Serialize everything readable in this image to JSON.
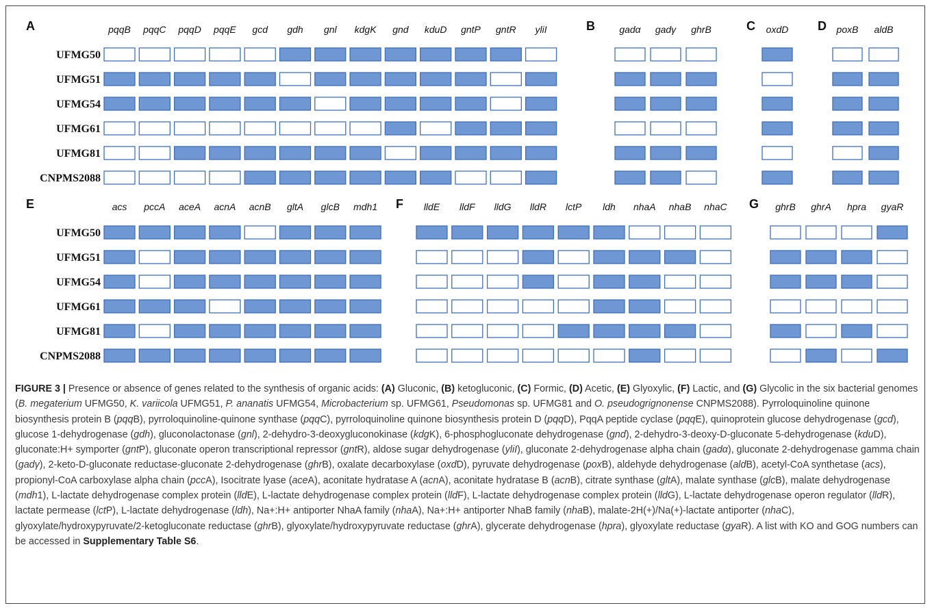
{
  "colors": {
    "filled": "#6f97d3",
    "filled_border": "#3f6fb8",
    "empty_border": "#3f6fb8",
    "empty": "#ffffff"
  },
  "strains": [
    "UFMG50",
    "UFMG51",
    "UFMG54",
    "UFMG61",
    "UFMG81",
    "CNPMS2088"
  ],
  "panels": [
    {
      "letter": "A",
      "genes": [
        "pqqB",
        "pqqC",
        "pqqD",
        "pqqE",
        "gcd",
        "gdh",
        "gnl",
        "kdgK",
        "gnd",
        "kduD",
        "gntP",
        "gntR",
        "yliI"
      ],
      "matrix": [
        [
          0,
          0,
          0,
          0,
          0,
          1,
          1,
          1,
          1,
          1,
          1,
          1,
          0
        ],
        [
          1,
          1,
          1,
          1,
          1,
          0,
          1,
          1,
          1,
          1,
          1,
          0,
          1
        ],
        [
          1,
          1,
          1,
          1,
          1,
          1,
          0,
          1,
          1,
          1,
          1,
          0,
          1
        ],
        [
          0,
          0,
          0,
          0,
          0,
          0,
          0,
          0,
          1,
          0,
          1,
          1,
          1
        ],
        [
          0,
          0,
          1,
          1,
          1,
          1,
          1,
          1,
          0,
          1,
          1,
          1,
          1
        ],
        [
          0,
          0,
          0,
          0,
          1,
          1,
          1,
          1,
          1,
          1,
          0,
          0,
          1
        ]
      ]
    },
    {
      "letter": "B",
      "genes": [
        "gadα",
        "gadγ",
        "ghrB"
      ],
      "matrix": [
        [
          0,
          0,
          0
        ],
        [
          1,
          1,
          1
        ],
        [
          1,
          1,
          1
        ],
        [
          0,
          0,
          0
        ],
        [
          1,
          1,
          1
        ],
        [
          1,
          1,
          0
        ]
      ]
    },
    {
      "letter": "C",
      "genes": [
        "oxdD"
      ],
      "matrix": [
        [
          1
        ],
        [
          0
        ],
        [
          1
        ],
        [
          1
        ],
        [
          0
        ],
        [
          1
        ]
      ]
    },
    {
      "letter": "D",
      "genes": [
        "poxB",
        "aldB"
      ],
      "matrix": [
        [
          0,
          0
        ],
        [
          1,
          1
        ],
        [
          1,
          1
        ],
        [
          1,
          1
        ],
        [
          0,
          1
        ],
        [
          1,
          1
        ]
      ]
    },
    {
      "letter": "E",
      "genes": [
        "acs",
        "pccA",
        "aceA",
        "acnA",
        "acnB",
        "gltA",
        "glcB",
        "mdh1"
      ],
      "matrix": [
        [
          1,
          1,
          1,
          1,
          0,
          1,
          1,
          1
        ],
        [
          1,
          0,
          1,
          1,
          1,
          1,
          1,
          1
        ],
        [
          1,
          0,
          1,
          1,
          1,
          1,
          1,
          1
        ],
        [
          1,
          1,
          1,
          0,
          1,
          1,
          1,
          1
        ],
        [
          1,
          0,
          1,
          1,
          1,
          1,
          1,
          1
        ],
        [
          1,
          1,
          1,
          1,
          1,
          1,
          1,
          1
        ]
      ]
    },
    {
      "letter": "F",
      "genes": [
        "lldE",
        "lldF",
        "lldG",
        "lldR",
        "lctP",
        "ldh",
        "nhaA",
        "nhaB",
        "nhaC"
      ],
      "matrix": [
        [
          1,
          1,
          1,
          1,
          1,
          1,
          0,
          0,
          0
        ],
        [
          0,
          0,
          0,
          1,
          0,
          1,
          1,
          1,
          0
        ],
        [
          0,
          0,
          0,
          1,
          0,
          1,
          1,
          0,
          0
        ],
        [
          0,
          0,
          0,
          0,
          0,
          1,
          1,
          0,
          0
        ],
        [
          0,
          0,
          0,
          0,
          1,
          1,
          1,
          1,
          0
        ],
        [
          0,
          0,
          0,
          0,
          0,
          0,
          1,
          0,
          0
        ]
      ]
    },
    {
      "letter": "G",
      "genes": [
        "ghrB",
        "ghrA",
        "hpra",
        "gyaR"
      ],
      "matrix": [
        [
          0,
          0,
          0,
          1
        ],
        [
          1,
          1,
          1,
          0
        ],
        [
          1,
          1,
          1,
          0
        ],
        [
          0,
          0,
          0,
          0
        ],
        [
          1,
          0,
          1,
          0
        ],
        [
          0,
          1,
          0,
          1
        ]
      ]
    }
  ],
  "caption": {
    "label": "FIGURE 3 |",
    "p1": " Presence or absence of genes related to the synthesis of organic acids: ",
    "lA": "(A)",
    "tA": " Gluconic, ",
    "lB": "(B)",
    "tB": " ketogluconic, ",
    "lC": "(C)",
    "tC": " Formic, ",
    "lD": "(D)",
    "tD": " Acetic, ",
    "lE": "(E)",
    "tE": " Glyoxylic, ",
    "lF": "(F)",
    "tF": " Lactic, and ",
    "lG": "(G)",
    "tG": " Glycolic in the six bacterial genomes (",
    "s1": "B. megaterium",
    "s1b": " UFMG50, ",
    "s2": "K. variicola",
    "s2b": " UFMG51, ",
    "s3": "P. ananatis",
    "s3b": " UFMG54, ",
    "s4": "Microbacterium",
    "s4b": " sp. UFMG61, ",
    "s5": "Pseudomonas",
    "s5b": " sp. UFMG81 and ",
    "s6": "O. pseudogrignonense",
    "s6b": " CNPMS2088). Pyrroloquinoline quinone biosynthesis protein B (",
    "g1": "pqq",
    "g1b": "B), pyrroloquinoline-quinone synthase (",
    "g2": "pqq",
    "g2b": "C), pyrroloquinoline quinone biosynthesis protein D (",
    "g3": "pqq",
    "g3b": "D), PqqA peptide cyclase (",
    "g4": "pqq",
    "g4b": "E), quinoprotein glucose dehydrogenase (",
    "g5": "gcd",
    "g5b": "), glucose 1-dehydrogenase (",
    "g6": "gdh",
    "g6b": "), gluconolactonase (",
    "g7": "gnl",
    "g7b": "), 2-dehydro-3-deoxygluconokinase (",
    "g8": "kdg",
    "g8b": "K), 6-phosphogluconate dehydrogenase (",
    "g9": "gnd",
    "g9b": "), 2-dehydro-3-deoxy-D-gluconate 5-dehydrogenase (",
    "g10": "kdu",
    "g10b": "D), gluconate:H+ symporter (",
    "g11": "gnt",
    "g11b": "P), gluconate operon transcriptional repressor (",
    "g12": "gnt",
    "g12b": "R), aldose sugar dehydrogenase (",
    "g13": "yliI",
    "g13b": "), gluconate 2-dehydrogenase alpha chain (",
    "g14": "gadα",
    "g14b": "), gluconate 2-dehydrogenase gamma chain (",
    "g15": "gadγ",
    "g15b": "), 2-keto-D-gluconate reductase-gluconate 2-dehydrogenase (",
    "g16": "ghr",
    "g16b": "B), oxalate decarboxylase (",
    "g17": "oxd",
    "g17b": "D), pyruvate dehydrogenase (",
    "g18": "pox",
    "g18b": "B), aldehyde dehydrogenase (",
    "g19": "ald",
    "g19b": "B), acetyl-CoA synthetase (",
    "g20": "acs",
    "g20b": "), propionyl-CoA carboxylase alpha chain (",
    "g21": "pcc",
    "g21b": "A), Isocitrate lyase (",
    "g22": "ace",
    "g22b": "A), aconitate hydratase A (",
    "g23": "acn",
    "g23b": "A), aconitate hydratase B (",
    "g24": "acn",
    "g24b": "B), citrate synthase (",
    "g25": "glt",
    "g25b": "A), malate synthase (",
    "g26": "glc",
    "g26b": "B), malate dehydrogenase (",
    "g27": "mdh",
    "g27b": "1), L-lactate dehydrogenase complex protein (",
    "g28": "lld",
    "g28b": "E), L-lactate dehydrogenase complex protein (",
    "g29": "lld",
    "g29b": "F), L-lactate dehydrogenase complex protein (",
    "g30": "lld",
    "g30b": "G), L-lactate dehydrogenase operon regulator (",
    "g31": "lld",
    "g31b": "R), lactate permease (",
    "g32": "lct",
    "g32b": "P), L-lactate dehydrogenase (",
    "g33": "ldh",
    "g33b": "), Na+:H+ antiporter NhaA family (",
    "g34": "nha",
    "g34b": "A), Na+:H+ antiporter NhaB family (",
    "g35": "nha",
    "g35b": "B), malate-2H(+)/Na(+)-lactate antiporter (",
    "g36": "nha",
    "g36b": "C), glyoxylate/hydroxypyruvate/2-ketogluconate reductase (",
    "g37": "ghr",
    "g37b": "B), glyoxylate/hydroxypyruvate reductase (",
    "g38": "ghr",
    "g38b": "A), glycerate dehydrogenase (",
    "g39": "hpra",
    "g39b": "), glyoxylate reductase (",
    "g40": "gya",
    "g40b": "R). A list with KO and GOG numbers can be accessed in ",
    "supp": "Supplementary Table S6",
    "end": "."
  }
}
